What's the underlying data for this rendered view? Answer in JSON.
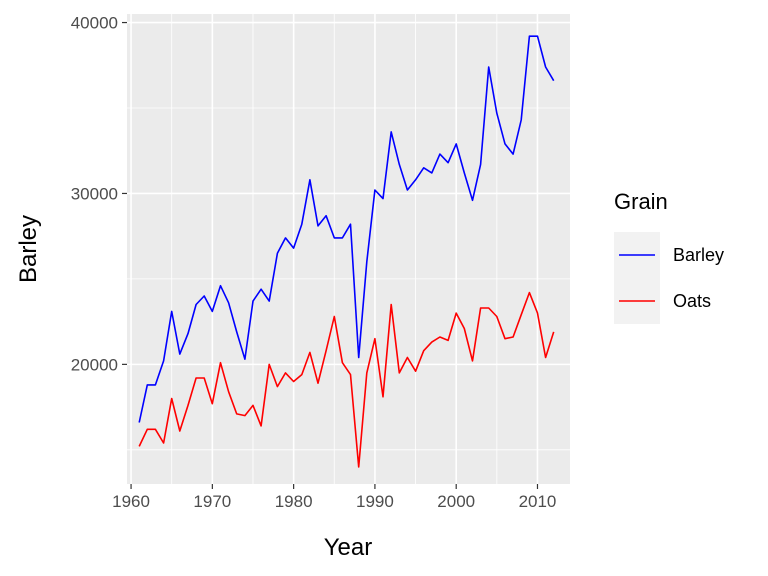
{
  "chart_data": {
    "type": "line",
    "xlabel": "Year",
    "ylabel": "Barley",
    "xlim": [
      1959.5,
      2014
    ],
    "ylim": [
      13000,
      40500
    ],
    "x_ticks": [
      1960,
      1970,
      1980,
      1990,
      2000,
      2010
    ],
    "y_ticks": [
      20000,
      30000,
      40000
    ],
    "grid": true,
    "legend": {
      "title": "Grain",
      "position": "right"
    },
    "x": [
      1961,
      1962,
      1963,
      1964,
      1965,
      1966,
      1967,
      1968,
      1969,
      1970,
      1971,
      1972,
      1973,
      1974,
      1975,
      1976,
      1977,
      1978,
      1979,
      1980,
      1981,
      1982,
      1983,
      1984,
      1985,
      1986,
      1987,
      1988,
      1989,
      1990,
      1991,
      1992,
      1993,
      1994,
      1995,
      1996,
      1997,
      1998,
      1999,
      2000,
      2001,
      2002,
      2003,
      2004,
      2005,
      2006,
      2007,
      2008,
      2009,
      2010,
      2011,
      2012
    ],
    "series": [
      {
        "name": "Barley",
        "color": "#0000ff",
        "values": [
          16600,
          18800,
          18800,
          20200,
          23100,
          20600,
          21800,
          23500,
          24000,
          23100,
          24600,
          23600,
          21900,
          20300,
          23700,
          24400,
          23700,
          26500,
          27400,
          26800,
          28200,
          30800,
          28100,
          28700,
          27400,
          27400,
          28200,
          20400,
          26000,
          30200,
          29700,
          33600,
          31700,
          30200,
          30800,
          31500,
          31200,
          32300,
          31800,
          32900,
          31200,
          29600,
          31700,
          37400,
          34700,
          32900,
          32300,
          34300,
          39200,
          39200,
          37400,
          36600
        ]
      },
      {
        "name": "Oats",
        "color": "#ff0000",
        "values": [
          15200,
          16200,
          16200,
          15400,
          18000,
          16100,
          17600,
          19200,
          19200,
          17700,
          20100,
          18400,
          17100,
          17000,
          17600,
          16400,
          20000,
          18700,
          19500,
          19000,
          19400,
          20700,
          18900,
          20800,
          22800,
          20100,
          19400,
          14000,
          19500,
          21500,
          18100,
          23500,
          19500,
          20400,
          19600,
          20800,
          21300,
          21600,
          21400,
          23000,
          22100,
          20200,
          23300,
          23300,
          22800,
          21500,
          21600,
          22900,
          24200,
          23000,
          20400,
          21900
        ]
      }
    ]
  }
}
